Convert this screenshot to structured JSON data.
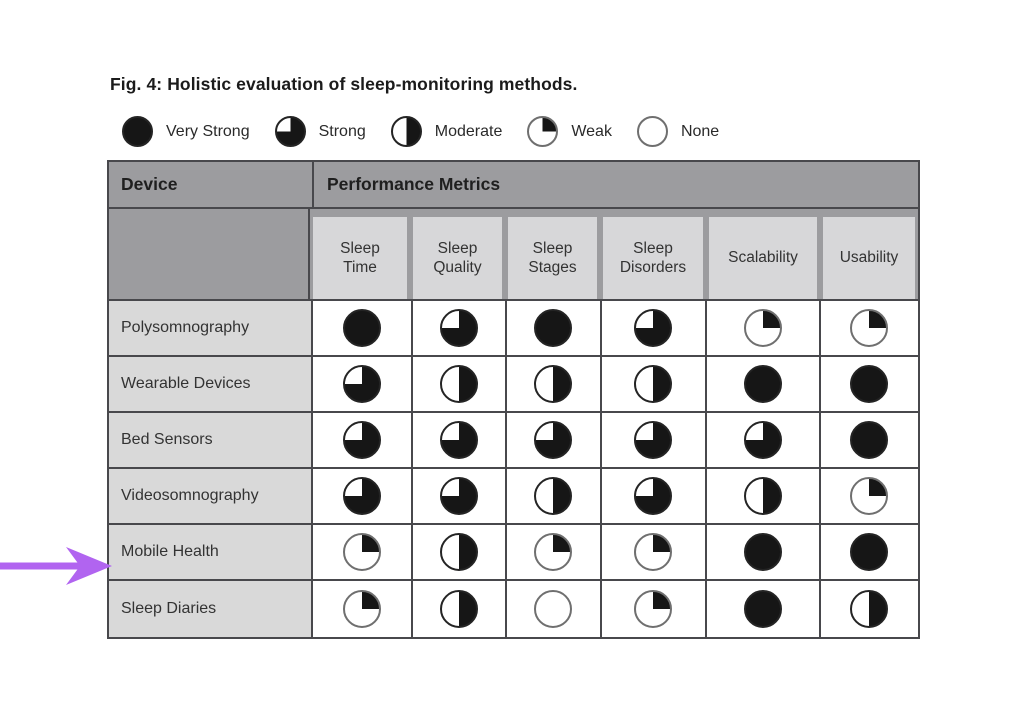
{
  "chart_data": {
    "type": "table",
    "title": "Fig. 4: Holistic evaluation of sleep-monitoring methods.",
    "row_header": "Device",
    "column_group_header": "Performance Metrics",
    "columns": [
      "Sleep Time",
      "Sleep Quality",
      "Sleep Stages",
      "Sleep Disorders",
      "Scalability",
      "Usability"
    ],
    "scale": [
      {
        "label": "Very Strong",
        "value": "very_strong",
        "fill_fraction": 1
      },
      {
        "label": "Strong",
        "value": "strong",
        "fill_fraction": 0.75
      },
      {
        "label": "Moderate",
        "value": "moderate",
        "fill_fraction": 0.5
      },
      {
        "label": "Weak",
        "value": "weak",
        "fill_fraction": 0.25
      },
      {
        "label": "None",
        "value": "none",
        "fill_fraction": 0
      }
    ],
    "rows": [
      {
        "device": "Polysomnography",
        "ratings": [
          "very_strong",
          "strong",
          "very_strong",
          "strong",
          "weak",
          "weak"
        ]
      },
      {
        "device": "Wearable Devices",
        "ratings": [
          "strong",
          "moderate",
          "moderate",
          "moderate",
          "very_strong",
          "very_strong"
        ]
      },
      {
        "device": "Bed Sensors",
        "ratings": [
          "strong",
          "strong",
          "strong",
          "strong",
          "strong",
          "very_strong"
        ]
      },
      {
        "device": "Videosomnography",
        "ratings": [
          "strong",
          "strong",
          "moderate",
          "strong",
          "moderate",
          "weak"
        ]
      },
      {
        "device": "Mobile Health",
        "ratings": [
          "weak",
          "moderate",
          "weak",
          "weak",
          "very_strong",
          "very_strong"
        ]
      },
      {
        "device": "Sleep Diaries",
        "ratings": [
          "weak",
          "moderate",
          "none",
          "weak",
          "very_strong",
          "moderate"
        ]
      }
    ]
  },
  "annotation": {
    "arrow_color": "#b164f0",
    "points_to_row": "Mobile Health"
  },
  "colors": {
    "header_bg": "#9c9c9f",
    "subheader_cell_bg": "#d7d7d9",
    "row_label_bg": "#d9d9d9",
    "grid_line": "#48484c",
    "ball_fill": "#161616",
    "ball_empty": "#ffffff"
  }
}
